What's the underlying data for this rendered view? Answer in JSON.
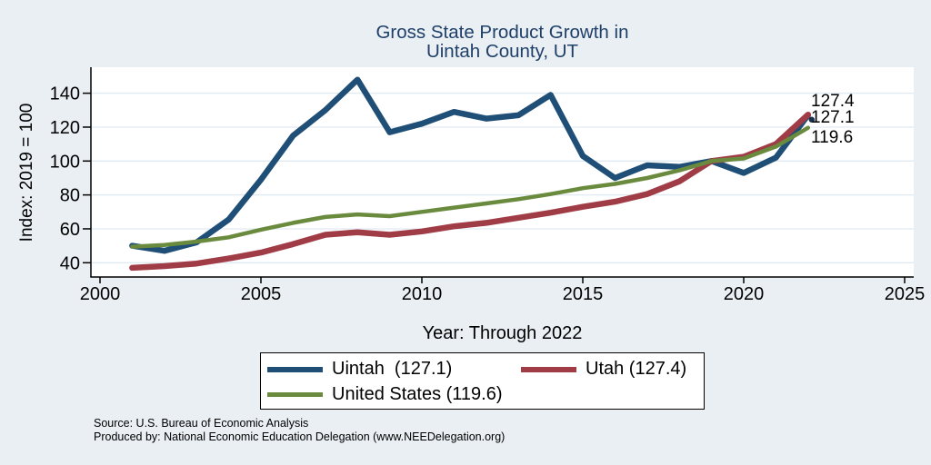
{
  "title": {
    "line1": "Gross State Product Growth in",
    "line2": "Uintah County, UT"
  },
  "y_axis": {
    "label": "Index: 2019 = 100",
    "ticks": [
      40,
      60,
      80,
      100,
      120,
      140
    ]
  },
  "x_axis": {
    "label": "Year: Through 2022",
    "ticks": [
      2000,
      2005,
      2010,
      2015,
      2020,
      2025
    ]
  },
  "end_labels": [
    "127.4",
    "127.1",
    "119.6"
  ],
  "legend": {
    "entries": [
      {
        "label": "Uintah  (127.1)",
        "color": "#1f4e76",
        "thickness": 6
      },
      {
        "label": "Utah (127.4)",
        "color": "#a03c46",
        "thickness": 6
      },
      {
        "label": "United States (119.6)",
        "color": "#6a8b3e",
        "thickness": 5
      }
    ]
  },
  "source": {
    "line1": "Source: U.S. Bureau of Economic Analysis",
    "line2": "Produced by: National Economic Education Delegation (www.NEEDelegation.org)"
  },
  "colors": {
    "background": "#e9eff3",
    "plot_background": "#ffffff",
    "gridline": "#e0eaf2",
    "axis": "#000000",
    "title_text": "#20406a",
    "uintah_line": "#1f4e76",
    "utah_line": "#a03c46",
    "united_states_line": "#6a8b3e",
    "end_dot": "#16304d"
  },
  "chart_data": {
    "type": "line",
    "title": "Gross State Product Growth in Uintah County, UT",
    "xlabel": "Year: Through 2022",
    "ylabel": "Index: 2019 = 100",
    "xlim": [
      1999.7,
      2025.3
    ],
    "ylim": [
      31,
      155
    ],
    "grid": "horizontal-only",
    "legend_position": "bottom",
    "x": [
      2001,
      2002,
      2003,
      2004,
      2005,
      2006,
      2007,
      2008,
      2009,
      2010,
      2011,
      2012,
      2013,
      2014,
      2015,
      2016,
      2017,
      2018,
      2019,
      2020,
      2021,
      2022
    ],
    "series": [
      {
        "name": "Uintah",
        "final_value": 127.1,
        "color": "#1f4e76",
        "width": 6.5,
        "values": [
          50,
          47,
          52,
          65.5,
          89,
          115,
          130,
          148,
          117,
          122,
          129,
          125,
          127,
          139,
          103,
          90,
          97.5,
          96.5,
          100,
          93,
          102,
          127.1
        ]
      },
      {
        "name": "Utah",
        "final_value": 127.4,
        "color": "#a03c46",
        "width": 6.5,
        "values": [
          37,
          38,
          39.5,
          42.5,
          46,
          51,
          56.5,
          58,
          56.5,
          58.5,
          61.5,
          63.5,
          66.5,
          69.5,
          73,
          76,
          80.5,
          88,
          100,
          102.5,
          110,
          127.4
        ]
      },
      {
        "name": "United States",
        "final_value": 119.6,
        "color": "#6a8b3e",
        "width": 4.5,
        "values": [
          49.5,
          50.5,
          52.5,
          55,
          59.5,
          63.5,
          67,
          68.5,
          67.5,
          70,
          72.5,
          75,
          77.5,
          80.5,
          84,
          86.5,
          90,
          94.5,
          100,
          101.5,
          108.5,
          119.6
        ]
      }
    ]
  }
}
